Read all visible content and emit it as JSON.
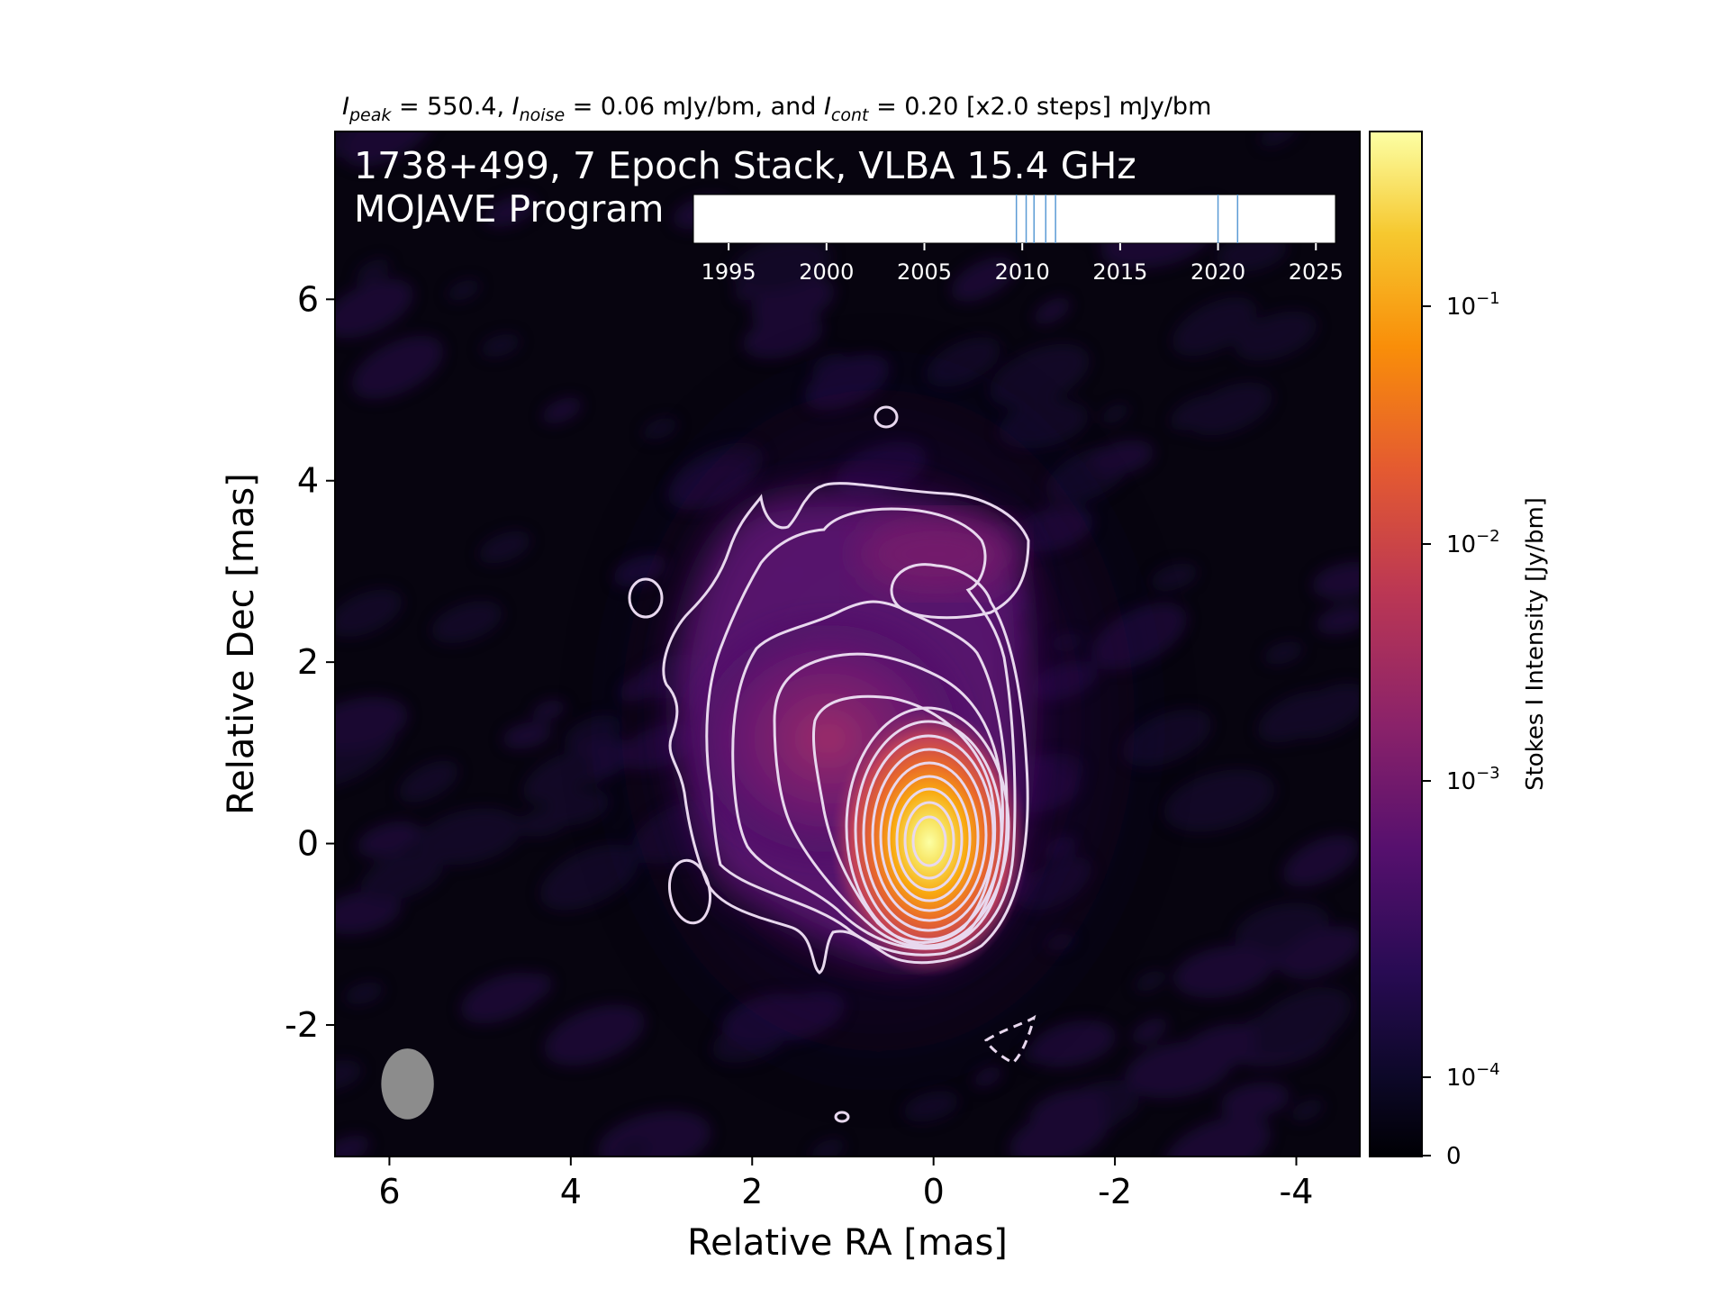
{
  "header": {
    "peak_symbol": "I",
    "peak_sub": "peak",
    "peak_value": " = 550.4, ",
    "noise_symbol": "I",
    "noise_sub": "noise",
    "noise_value": " = 0.06 mJy/bm, and ",
    "cont_symbol": "I",
    "cont_sub": "cont",
    "cont_value": " = 0.20 [x2.0 steps] mJy/bm"
  },
  "overlay": {
    "title_line1": "1738+499, 7 Epoch Stack, VLBA 15.4 GHz",
    "title_line2": "MOJAVE Program"
  },
  "timeline": {
    "range": [
      1993.2,
      2026.0
    ],
    "ticks": [
      "1995",
      "2000",
      "2005",
      "2010",
      "2015",
      "2020",
      "2025"
    ],
    "tick_values": [
      1995,
      2000,
      2005,
      2010,
      2015,
      2020,
      2025
    ],
    "epochs": [
      2009.7,
      2010.2,
      2010.6,
      2011.2,
      2011.7,
      2020.0,
      2021.0
    ],
    "epoch_color": "#5b9bd5"
  },
  "chart_data": {
    "type": "heatmap",
    "xlabel": "Relative RA [mas]",
    "ylabel": "Relative Dec [mas]",
    "xlim": [
      6.6,
      -4.7
    ],
    "ylim": [
      -3.45,
      7.85
    ],
    "xticks": [
      6,
      4,
      2,
      0,
      -2,
      -4
    ],
    "xtick_labels": [
      "6",
      "4",
      "2",
      "0",
      "-2",
      "-4"
    ],
    "yticks": [
      -2,
      0,
      2,
      4,
      6
    ],
    "ytick_labels": [
      "-2",
      "0",
      "2",
      "4",
      "6"
    ],
    "colormap": "inferno",
    "colorbar": {
      "label": "Stokes I Intensity [Jy/bm]",
      "scale": "log",
      "tick_labels": [
        {
          "value": 0.1,
          "base": "10",
          "exp": "−1"
        },
        {
          "value": 0.01,
          "base": "10",
          "exp": "−2"
        },
        {
          "value": 0.001,
          "base": "10",
          "exp": "−3"
        },
        {
          "value": 0.0001,
          "base": "10",
          "exp": "−4"
        },
        {
          "value": 0,
          "base": "0",
          "exp": ""
        }
      ]
    },
    "peak_intensity": 550.4,
    "noise_mJy_per_beam": 0.06,
    "lowest_contour_mJy_per_beam": 0.2,
    "contour_step": 2.0,
    "core_position": [
      0,
      0
    ],
    "beam": {
      "ra": 5.8,
      "dec": -2.65,
      "major_mas": 0.78,
      "minor_mas": 0.58,
      "pa_deg": 0,
      "color": "#8c8c8c"
    },
    "contour_color": "#e8d8ee"
  }
}
